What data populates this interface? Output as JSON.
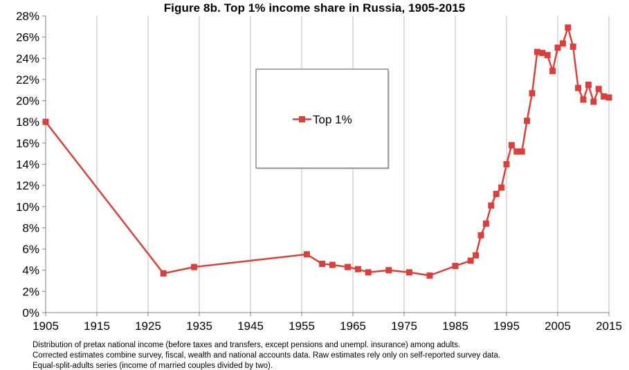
{
  "chart_data": {
    "type": "line",
    "title": "Figure 8b. Top 1% income share in Russia, 1905-2015",
    "xlabel": "",
    "ylabel": "",
    "xlim": [
      1905,
      2015
    ],
    "ylim": [
      0,
      28
    ],
    "x_ticks": [
      1905,
      1915,
      1925,
      1935,
      1945,
      1955,
      1965,
      1975,
      1985,
      1995,
      2005,
      2015
    ],
    "y_ticks": [
      "0%",
      "2%",
      "4%",
      "6%",
      "8%",
      "10%",
      "12%",
      "14%",
      "16%",
      "18%",
      "20%",
      "22%",
      "24%",
      "26%",
      "28%"
    ],
    "grid": "vertical",
    "legend": "center",
    "series": [
      {
        "name": "Top 1%",
        "color": "#d9403b",
        "marker": "square",
        "points": [
          [
            1905,
            18.0
          ],
          [
            1928,
            3.7
          ],
          [
            1934,
            4.3
          ],
          [
            1956,
            5.5
          ],
          [
            1959,
            4.6
          ],
          [
            1961,
            4.5
          ],
          [
            1964,
            4.3
          ],
          [
            1966,
            4.1
          ],
          [
            1968,
            3.8
          ],
          [
            1972,
            4.0
          ],
          [
            1976,
            3.8
          ],
          [
            1980,
            3.5
          ],
          [
            1985,
            4.4
          ],
          [
            1988,
            4.9
          ],
          [
            1989,
            5.4
          ],
          [
            1990,
            7.3
          ],
          [
            1991,
            8.4
          ],
          [
            1992,
            10.1
          ],
          [
            1993,
            11.2
          ],
          [
            1994,
            11.8
          ],
          [
            1995,
            14.0
          ],
          [
            1996,
            15.8
          ],
          [
            1997,
            15.2
          ],
          [
            1998,
            15.2
          ],
          [
            1999,
            18.1
          ],
          [
            2000,
            20.7
          ],
          [
            2001,
            24.6
          ],
          [
            2002,
            24.5
          ],
          [
            2003,
            24.3
          ],
          [
            2004,
            22.8
          ],
          [
            2005,
            25.0
          ],
          [
            2006,
            25.4
          ],
          [
            2007,
            26.9
          ],
          [
            2008,
            25.1
          ],
          [
            2009,
            21.2
          ],
          [
            2010,
            20.1
          ],
          [
            2011,
            21.5
          ],
          [
            2012,
            19.9
          ],
          [
            2013,
            21.1
          ],
          [
            2014,
            20.4
          ],
          [
            2015,
            20.3
          ]
        ]
      }
    ],
    "notes": [
      "Distribution of pretax national income (before taxes and transfers, except pensions and unempl. insurance) among adults.",
      "Corrected estimates combine survey, fiscal, wealth and national accounts data. Raw estimates rely only on self-reported survey data.",
      "Equal-split-adults series (income of married couples divided by two)."
    ]
  }
}
